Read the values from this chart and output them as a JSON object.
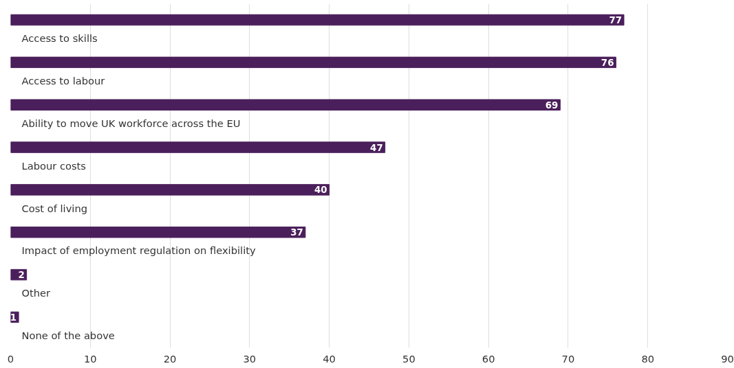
{
  "chart_data": {
    "type": "bar",
    "orientation": "horizontal",
    "categories": [
      "Access to skills",
      "Access to labour",
      "Ability to move UK workforce across the EU",
      "Labour costs",
      "Cost of living",
      "Impact of employment regulation on flexibility",
      "Other",
      "None of the above"
    ],
    "values": [
      77,
      76,
      69,
      47,
      40,
      37,
      2,
      1
    ],
    "color": "#4b1f5b",
    "xlim": [
      0,
      90
    ],
    "xticks": [
      0,
      10,
      20,
      30,
      40,
      50,
      60,
      70,
      80,
      90
    ],
    "grid": "x",
    "data_labels": true
  }
}
